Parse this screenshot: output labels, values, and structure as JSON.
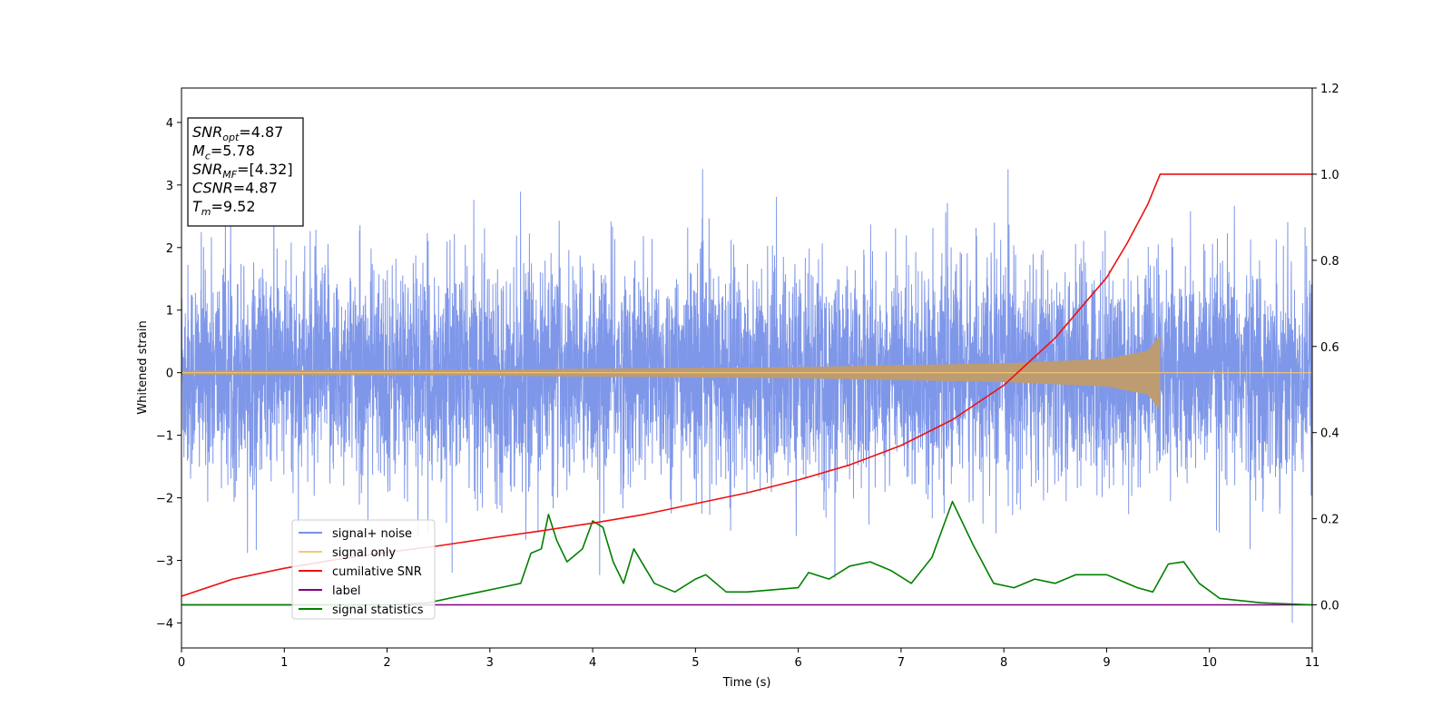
{
  "chart_data": {
    "type": "line",
    "xlabel": "Time (s)",
    "ylabel": "Whitened strain",
    "xlim": [
      0,
      11
    ],
    "ylim_left": [
      -4.4,
      4.55
    ],
    "ylim_right": [
      -0.1,
      1.2
    ],
    "x_ticks": [
      0,
      1,
      2,
      3,
      4,
      5,
      6,
      7,
      8,
      9,
      10,
      11
    ],
    "y_ticks_left": [
      -4,
      -3,
      -2,
      -1,
      0,
      1,
      2,
      3,
      4
    ],
    "y_ticks_right": [
      0.0,
      0.2,
      0.4,
      0.6,
      0.8,
      1.0,
      1.2
    ],
    "x_tick_labels": [
      "0",
      "1",
      "2",
      "3",
      "4",
      "5",
      "6",
      "7",
      "8",
      "9",
      "10",
      "11"
    ],
    "y_tick_labels_left": [
      "−4",
      "−3",
      "−2",
      "−1",
      "0",
      "1",
      "2",
      "3",
      "4"
    ],
    "y_tick_labels_right": [
      "0.0",
      "0.2",
      "0.4",
      "0.6",
      "0.8",
      "1.0",
      "1.2"
    ],
    "grid": false,
    "legend_position": "lower-left",
    "merger_time": 9.52,
    "series": [
      {
        "name": "signal+ noise",
        "axis": "left",
        "color": "#7891e8",
        "description_of_values": "noise with amplitude about ±1.7 typical, spikes up to ±4",
        "y_range": [
          -4.0,
          4.15
        ]
      },
      {
        "name": "signal only",
        "axis": "left",
        "color": "#f5c875",
        "description_of_values": "chirp growing in amplitude until merger",
        "amplitude_points": [
          [
            0,
            0.03
          ],
          [
            3,
            0.05
          ],
          [
            6,
            0.09
          ],
          [
            8,
            0.15
          ],
          [
            9,
            0.22
          ],
          [
            9.4,
            0.35
          ],
          [
            9.52,
            0.6
          ],
          [
            9.53,
            0
          ]
        ]
      },
      {
        "name": "cumilative SNR",
        "axis": "right",
        "color": "#ee1111",
        "x": [
          0,
          0.5,
          1,
          1.5,
          2,
          2.5,
          3,
          3.5,
          4,
          4.5,
          5,
          5.5,
          6,
          6.5,
          7,
          7.5,
          8,
          8.5,
          9,
          9.2,
          9.4,
          9.52,
          11
        ],
        "values": [
          0.02,
          0.06,
          0.085,
          0.105,
          0.122,
          0.137,
          0.155,
          0.172,
          0.19,
          0.21,
          0.235,
          0.26,
          0.29,
          0.325,
          0.37,
          0.43,
          0.51,
          0.62,
          0.76,
          0.84,
          0.93,
          1.0,
          1.0
        ]
      },
      {
        "name": "label",
        "axis": "right",
        "color": "#800080",
        "x": [
          0,
          11
        ],
        "values": [
          0.0,
          0.0
        ]
      },
      {
        "name": "signal statistics",
        "axis": "right",
        "color": "#008000",
        "x": [
          0,
          2.0,
          2.4,
          2.7,
          2.9,
          3.1,
          3.3,
          3.4,
          3.5,
          3.57,
          3.65,
          3.75,
          3.9,
          4.0,
          4.1,
          4.2,
          4.3,
          4.4,
          4.5,
          4.6,
          4.8,
          5.0,
          5.1,
          5.3,
          5.5,
          6.0,
          6.1,
          6.3,
          6.5,
          6.7,
          6.9,
          7.1,
          7.3,
          7.5,
          7.7,
          7.9,
          8.1,
          8.3,
          8.5,
          8.7,
          9.0,
          9.3,
          9.45,
          9.6,
          9.75,
          9.9,
          10.1,
          10.5,
          11
        ],
        "values": [
          0.0,
          0.0,
          0.005,
          0.02,
          0.03,
          0.04,
          0.05,
          0.12,
          0.13,
          0.21,
          0.15,
          0.1,
          0.13,
          0.195,
          0.18,
          0.1,
          0.05,
          0.13,
          0.09,
          0.05,
          0.03,
          0.06,
          0.07,
          0.03,
          0.03,
          0.04,
          0.075,
          0.06,
          0.09,
          0.1,
          0.08,
          0.05,
          0.11,
          0.24,
          0.14,
          0.05,
          0.04,
          0.06,
          0.05,
          0.07,
          0.07,
          0.04,
          0.03,
          0.095,
          0.1,
          0.05,
          0.015,
          0.005,
          0.0
        ]
      }
    ],
    "info_box": [
      {
        "main": "SNR",
        "sub": "opt",
        "value": "=4.87"
      },
      {
        "main": "M",
        "sub": "c",
        "value": "=5.78"
      },
      {
        "main": "SNR",
        "sub": "MF",
        "value": "=[4.32]"
      },
      {
        "main": "CSNR",
        "sub": "",
        "value": "=4.87"
      },
      {
        "main": "T",
        "sub": "m",
        "value": "=9.52"
      }
    ]
  }
}
